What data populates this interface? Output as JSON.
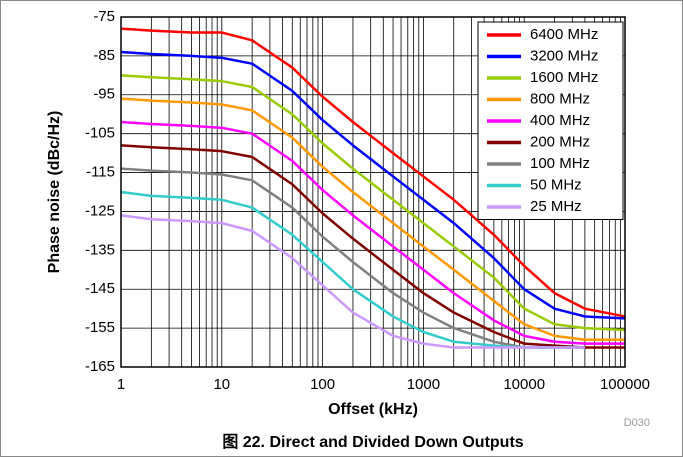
{
  "chart_data": {
    "type": "line",
    "caption": "图 22. Direct and Divided Down Outputs",
    "figure_id": "D030",
    "x_label": "Offset (kHz)",
    "y_label": "Phase noise (dBc/Hz)",
    "x_log": true,
    "grid": true,
    "x_minor_grid": true,
    "legend_position": "upper right",
    "xlim": [
      1,
      100000
    ],
    "xticks": [
      1,
      10,
      100,
      1000,
      10000,
      100000
    ],
    "ylim": [
      -165,
      -75
    ],
    "yticks": [
      -165,
      -155,
      -145,
      -135,
      -125,
      -115,
      -105,
      -95,
      -85,
      -75
    ],
    "x": [
      1,
      2,
      5,
      10,
      20,
      50,
      100,
      200,
      500,
      1000,
      2000,
      5000,
      10000,
      20000,
      40000,
      100000
    ],
    "series": [
      {
        "name": "6400 MHz",
        "color": "#ff0000",
        "values": [
          -78,
          -78.5,
          -79,
          -79,
          -81,
          -88,
          -95.5,
          -102,
          -110,
          -116,
          -122,
          -131,
          -139,
          -146,
          -150,
          -152
        ]
      },
      {
        "name": "3200 MHz",
        "color": "#0000ff",
        "values": [
          -84,
          -84.5,
          -85,
          -85.5,
          -87,
          -94,
          -101.5,
          -108,
          -116,
          -122,
          -128,
          -137,
          -145,
          -150,
          -152,
          -152.5
        ]
      },
      {
        "name": "1600 MHz",
        "color": "#99cc00",
        "values": [
          -90,
          -90.5,
          -91,
          -91.5,
          -93,
          -100,
          -107.5,
          -114,
          -122,
          -128,
          -134,
          -142,
          -150,
          -154,
          -155,
          -155.5
        ]
      },
      {
        "name": "800 MHz",
        "color": "#ff9900",
        "values": [
          -96,
          -96.5,
          -97,
          -97.5,
          -99,
          -106,
          -113.5,
          -120,
          -128,
          -134,
          -140,
          -148,
          -154,
          -157,
          -158,
          -158
        ]
      },
      {
        "name": "400 MHz",
        "color": "#ff00ff",
        "values": [
          -102,
          -102.5,
          -103,
          -103.5,
          -105,
          -112,
          -119.5,
          -126,
          -134,
          -140,
          -146,
          -153,
          -157,
          -158.5,
          -159,
          -159
        ]
      },
      {
        "name": "200 MHz",
        "color": "#800000",
        "values": [
          -108,
          -108.5,
          -109,
          -109.5,
          -111,
          -118,
          -125.5,
          -132,
          -140,
          -146,
          -151,
          -156,
          -159,
          -159.5,
          -160,
          -160
        ]
      },
      {
        "name": "100 MHz",
        "color": "#808080",
        "values": [
          -114,
          -114.5,
          -115,
          -115.5,
          -117,
          -124,
          -131.5,
          -138,
          -146,
          -151,
          -155,
          -158.5,
          -160,
          -160,
          -160,
          null
        ]
      },
      {
        "name": "50 MHz",
        "color": "#33cccc",
        "values": [
          -120,
          -121,
          -121.5,
          -122,
          -124,
          -131,
          -138,
          -145,
          -152,
          -156,
          -158.5,
          -159.5,
          -160,
          -160,
          -160,
          null
        ]
      },
      {
        "name": "25 MHz",
        "color": "#cc99ff",
        "values": [
          -126,
          -127,
          -127.5,
          -128,
          -130,
          -137,
          -144,
          -151,
          -157,
          -159,
          -160,
          -160,
          -160,
          -160,
          -160,
          null
        ]
      }
    ]
  }
}
